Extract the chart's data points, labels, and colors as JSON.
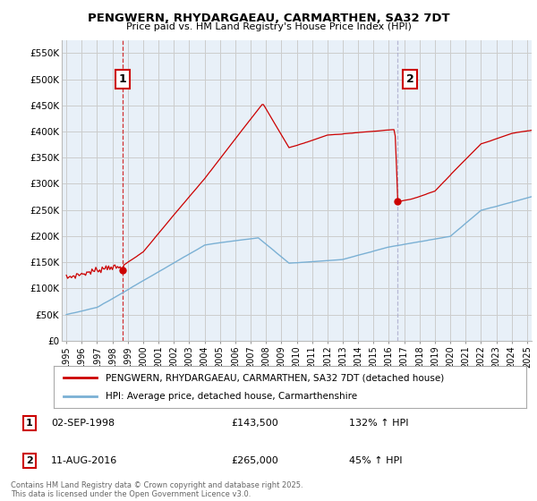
{
  "title": "PENGWERN, RHYDARGAEAU, CARMARTHEN, SA32 7DT",
  "subtitle": "Price paid vs. HM Land Registry's House Price Index (HPI)",
  "legend_line1": "PENGWERN, RHYDARGAEAU, CARMARTHEN, SA32 7DT (detached house)",
  "legend_line2": "HPI: Average price, detached house, Carmarthenshire",
  "annotation1_label": "1",
  "annotation1_date": "02-SEP-1998",
  "annotation1_price": "£143,500",
  "annotation1_hpi": "132% ↑ HPI",
  "annotation2_label": "2",
  "annotation2_date": "11-AUG-2016",
  "annotation2_price": "£265,000",
  "annotation2_hpi": "45% ↑ HPI",
  "footer": "Contains HM Land Registry data © Crown copyright and database right 2025.\nThis data is licensed under the Open Government Licence v3.0.",
  "ylim": [
    0,
    575000
  ],
  "yticks": [
    0,
    50000,
    100000,
    150000,
    200000,
    250000,
    300000,
    350000,
    400000,
    450000,
    500000,
    550000
  ],
  "red_color": "#cc0000",
  "blue_color": "#7ab0d4",
  "vline1_color": "#cc0000",
  "vline2_color": "#aaaacc",
  "grid_color": "#cccccc",
  "plot_bg_color": "#e8f0f8",
  "background_color": "#ffffff",
  "anno1_x_year": 1998.67,
  "anno2_x_year": 2016.58,
  "anno1_y": 143500,
  "anno2_y": 265000,
  "xmin": 1994.7,
  "xmax": 2025.3
}
